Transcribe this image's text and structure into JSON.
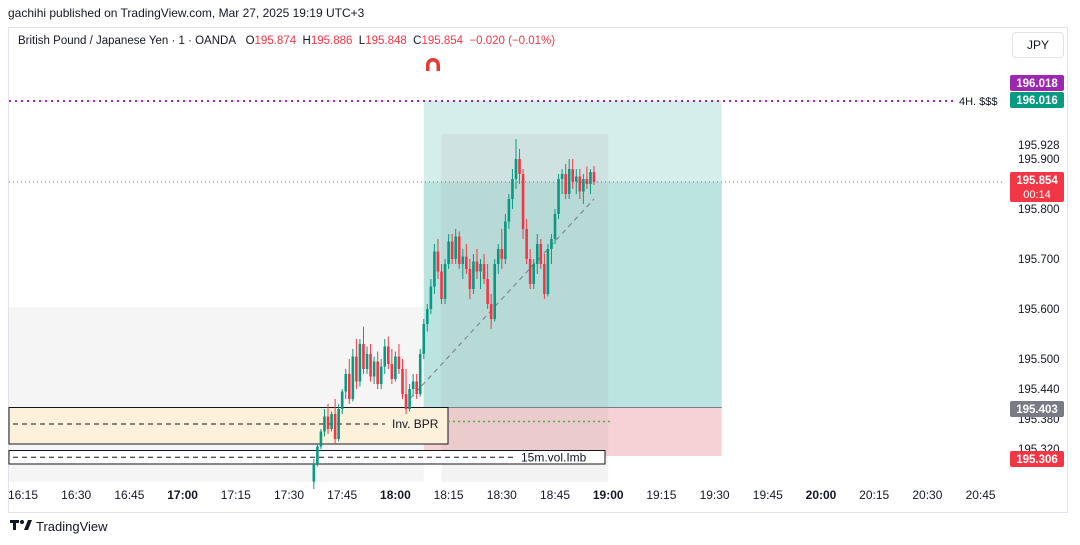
{
  "header": {
    "text": "gachihi published on TradingView.com, Mar 27, 2025 19:19 UTC+3"
  },
  "legend": {
    "symbol": "British Pound / Japanese Yen · 1 · OANDA",
    "o_label": "O",
    "o": "195.874",
    "h_label": "H",
    "h": "195.886",
    "l_label": "L",
    "l": "195.848",
    "c_label": "C",
    "c": "195.854",
    "change": "−0.020 (−0.01%)"
  },
  "currency": "JPY",
  "footer": {
    "brand": "TradingView"
  },
  "colors": {
    "up": "#089981",
    "down": "#f23645",
    "purple": "#9c27b0",
    "profit_zone": "#b2dfdb",
    "loss_zone": "#f7d2d4",
    "bpr": "#fdf1dc"
  },
  "chart_data": {
    "type": "candlestick",
    "x_tick_labels": [
      "16:15",
      "16:30",
      "16:45",
      "17:00",
      "17:15",
      "17:30",
      "17:45",
      "18:00",
      "18:15",
      "18:30",
      "18:45",
      "19:00",
      "19:15",
      "19:30",
      "19:45",
      "20:00",
      "20:15",
      "20:30",
      "20:45"
    ],
    "bold_x_ticks": [
      "17:00",
      "18:00",
      "19:00",
      "20:00"
    ],
    "y_tick_labels": [
      "195.928",
      "195.900",
      "195.800",
      "195.700",
      "195.600",
      "195.500",
      "195.440",
      "195.380",
      "195.320"
    ],
    "price_badges": [
      {
        "value": "196.018",
        "color": "#9c27b0"
      },
      {
        "value": "196.016",
        "color": "#089981"
      },
      {
        "value": "195.854",
        "sub": "00:14",
        "color": "#f23645"
      },
      {
        "value": "195.403",
        "color": "#787b86"
      },
      {
        "value": "195.306",
        "color": "#f23645"
      }
    ],
    "annotations": [
      {
        "text": "4H. $$$",
        "price": 196.016
      },
      {
        "text": "Inv. BPR",
        "price": 195.38
      },
      {
        "text": "15m.vol.Imb",
        "price": 195.305
      }
    ],
    "position": {
      "entry": 195.403,
      "target": 196.016,
      "stop": 195.306,
      "start": "18:08",
      "end": "19:32"
    },
    "candles": [
      {
        "t": "17:37",
        "o": 195.255,
        "h": 195.3,
        "l": 195.24,
        "c": 195.29
      },
      {
        "t": "17:38",
        "o": 195.29,
        "h": 195.33,
        "l": 195.285,
        "c": 195.325
      },
      {
        "t": "17:39",
        "o": 195.325,
        "h": 195.36,
        "l": 195.32,
        "c": 195.355
      },
      {
        "t": "17:40",
        "o": 195.355,
        "h": 195.4,
        "l": 195.345,
        "c": 195.385
      },
      {
        "t": "17:41",
        "o": 195.385,
        "h": 195.41,
        "l": 195.35,
        "c": 195.36
      },
      {
        "t": "17:42",
        "o": 195.36,
        "h": 195.395,
        "l": 195.355,
        "c": 195.39
      },
      {
        "t": "17:43",
        "o": 195.39,
        "h": 195.42,
        "l": 195.33,
        "c": 195.34
      },
      {
        "t": "17:44",
        "o": 195.34,
        "h": 195.41,
        "l": 195.335,
        "c": 195.4
      },
      {
        "t": "17:45",
        "o": 195.4,
        "h": 195.44,
        "l": 195.39,
        "c": 195.435
      },
      {
        "t": "17:46",
        "o": 195.435,
        "h": 195.48,
        "l": 195.42,
        "c": 195.47
      },
      {
        "t": "17:47",
        "o": 195.47,
        "h": 195.5,
        "l": 195.41,
        "c": 195.42
      },
      {
        "t": "17:48",
        "o": 195.42,
        "h": 195.52,
        "l": 195.415,
        "c": 195.505
      },
      {
        "t": "17:49",
        "o": 195.505,
        "h": 195.54,
        "l": 195.44,
        "c": 195.455
      },
      {
        "t": "17:50",
        "o": 195.455,
        "h": 195.54,
        "l": 195.445,
        "c": 195.53
      },
      {
        "t": "17:51",
        "o": 195.53,
        "h": 195.565,
        "l": 195.47,
        "c": 195.48
      },
      {
        "t": "17:52",
        "o": 195.48,
        "h": 195.525,
        "l": 195.47,
        "c": 195.51
      },
      {
        "t": "17:53",
        "o": 195.51,
        "h": 195.53,
        "l": 195.455,
        "c": 195.465
      },
      {
        "t": "17:54",
        "o": 195.465,
        "h": 195.505,
        "l": 195.45,
        "c": 195.495
      },
      {
        "t": "17:55",
        "o": 195.495,
        "h": 195.515,
        "l": 195.44,
        "c": 195.45
      },
      {
        "t": "17:56",
        "o": 195.45,
        "h": 195.5,
        "l": 195.44,
        "c": 195.485
      },
      {
        "t": "17:57",
        "o": 195.485,
        "h": 195.54,
        "l": 195.47,
        "c": 195.525
      },
      {
        "t": "17:58",
        "o": 195.525,
        "h": 195.545,
        "l": 195.48,
        "c": 195.49
      },
      {
        "t": "17:59",
        "o": 195.49,
        "h": 195.52,
        "l": 195.45,
        "c": 195.46
      },
      {
        "t": "18:00",
        "o": 195.46,
        "h": 195.515,
        "l": 195.455,
        "c": 195.505
      },
      {
        "t": "18:01",
        "o": 195.505,
        "h": 195.53,
        "l": 195.47,
        "c": 195.48
      },
      {
        "t": "18:02",
        "o": 195.48,
        "h": 195.5,
        "l": 195.42,
        "c": 195.43
      },
      {
        "t": "18:03",
        "o": 195.43,
        "h": 195.48,
        "l": 195.39,
        "c": 195.4
      },
      {
        "t": "18:04",
        "o": 195.4,
        "h": 195.45,
        "l": 195.395,
        "c": 195.44
      },
      {
        "t": "18:05",
        "o": 195.44,
        "h": 195.47,
        "l": 195.425,
        "c": 195.455
      },
      {
        "t": "18:06",
        "o": 195.455,
        "h": 195.47,
        "l": 195.42,
        "c": 195.43
      },
      {
        "t": "18:07",
        "o": 195.43,
        "h": 195.52,
        "l": 195.425,
        "c": 195.51
      },
      {
        "t": "18:08",
        "o": 195.51,
        "h": 195.58,
        "l": 195.5,
        "c": 195.57
      },
      {
        "t": "18:09",
        "o": 195.57,
        "h": 195.61,
        "l": 195.555,
        "c": 195.6
      },
      {
        "t": "18:10",
        "o": 195.6,
        "h": 195.66,
        "l": 195.59,
        "c": 195.645
      },
      {
        "t": "18:11",
        "o": 195.645,
        "h": 195.73,
        "l": 195.63,
        "c": 195.715
      },
      {
        "t": "18:12",
        "o": 195.715,
        "h": 195.74,
        "l": 195.66,
        "c": 195.675
      },
      {
        "t": "18:13",
        "o": 195.675,
        "h": 195.69,
        "l": 195.61,
        "c": 195.62
      },
      {
        "t": "18:14",
        "o": 195.62,
        "h": 195.7,
        "l": 195.61,
        "c": 195.69
      },
      {
        "t": "18:15",
        "o": 195.69,
        "h": 195.75,
        "l": 195.68,
        "c": 195.735
      },
      {
        "t": "18:16",
        "o": 195.735,
        "h": 195.75,
        "l": 195.69,
        "c": 195.7
      },
      {
        "t": "18:17",
        "o": 195.7,
        "h": 195.76,
        "l": 195.69,
        "c": 195.745
      },
      {
        "t": "18:18",
        "o": 195.745,
        "h": 195.755,
        "l": 195.68,
        "c": 195.69
      },
      {
        "t": "18:19",
        "o": 195.69,
        "h": 195.72,
        "l": 195.66,
        "c": 195.705
      },
      {
        "t": "18:20",
        "o": 195.705,
        "h": 195.73,
        "l": 195.67,
        "c": 195.68
      },
      {
        "t": "18:21",
        "o": 195.68,
        "h": 195.7,
        "l": 195.62,
        "c": 195.64
      },
      {
        "t": "18:22",
        "o": 195.64,
        "h": 195.71,
        "l": 195.63,
        "c": 195.695
      },
      {
        "t": "18:23",
        "o": 195.695,
        "h": 195.72,
        "l": 195.66,
        "c": 195.675
      },
      {
        "t": "18:24",
        "o": 195.675,
        "h": 195.7,
        "l": 195.64,
        "c": 195.69
      },
      {
        "t": "18:25",
        "o": 195.69,
        "h": 195.71,
        "l": 195.65,
        "c": 195.66
      },
      {
        "t": "18:26",
        "o": 195.66,
        "h": 195.69,
        "l": 195.6,
        "c": 195.61
      },
      {
        "t": "18:27",
        "o": 195.61,
        "h": 195.63,
        "l": 195.56,
        "c": 195.58
      },
      {
        "t": "18:28",
        "o": 195.58,
        "h": 195.7,
        "l": 195.575,
        "c": 195.69
      },
      {
        "t": "18:29",
        "o": 195.69,
        "h": 195.73,
        "l": 195.67,
        "c": 195.72
      },
      {
        "t": "18:30",
        "o": 195.72,
        "h": 195.76,
        "l": 195.68,
        "c": 195.7
      },
      {
        "t": "18:31",
        "o": 195.7,
        "h": 195.79,
        "l": 195.69,
        "c": 195.775
      },
      {
        "t": "18:32",
        "o": 195.775,
        "h": 195.83,
        "l": 195.76,
        "c": 195.82
      },
      {
        "t": "18:33",
        "o": 195.82,
        "h": 195.88,
        "l": 195.8,
        "c": 195.86
      },
      {
        "t": "18:34",
        "o": 195.86,
        "h": 195.94,
        "l": 195.84,
        "c": 195.9
      },
      {
        "t": "18:35",
        "o": 195.9,
        "h": 195.92,
        "l": 195.85,
        "c": 195.87
      },
      {
        "t": "18:36",
        "o": 195.87,
        "h": 195.88,
        "l": 195.74,
        "c": 195.76
      },
      {
        "t": "18:37",
        "o": 195.76,
        "h": 195.78,
        "l": 195.69,
        "c": 195.7
      },
      {
        "t": "18:38",
        "o": 195.7,
        "h": 195.72,
        "l": 195.64,
        "c": 195.65
      },
      {
        "t": "18:39",
        "o": 195.65,
        "h": 195.7,
        "l": 195.64,
        "c": 195.69
      },
      {
        "t": "18:40",
        "o": 195.69,
        "h": 195.75,
        "l": 195.67,
        "c": 195.73
      },
      {
        "t": "18:41",
        "o": 195.73,
        "h": 195.74,
        "l": 195.68,
        "c": 195.69
      },
      {
        "t": "18:42",
        "o": 195.69,
        "h": 195.71,
        "l": 195.62,
        "c": 195.63
      },
      {
        "t": "18:43",
        "o": 195.63,
        "h": 195.73,
        "l": 195.625,
        "c": 195.72
      },
      {
        "t": "18:44",
        "o": 195.72,
        "h": 195.75,
        "l": 195.69,
        "c": 195.74
      },
      {
        "t": "18:45",
        "o": 195.74,
        "h": 195.8,
        "l": 195.73,
        "c": 195.79
      },
      {
        "t": "18:46",
        "o": 195.79,
        "h": 195.87,
        "l": 195.78,
        "c": 195.86
      },
      {
        "t": "18:47",
        "o": 195.86,
        "h": 195.88,
        "l": 195.83,
        "c": 195.87
      },
      {
        "t": "18:48",
        "o": 195.87,
        "h": 195.89,
        "l": 195.82,
        "c": 195.83
      },
      {
        "t": "18:49",
        "o": 195.83,
        "h": 195.9,
        "l": 195.82,
        "c": 195.88
      },
      {
        "t": "18:50",
        "o": 195.88,
        "h": 195.9,
        "l": 195.84,
        "c": 195.855
      },
      {
        "t": "18:51",
        "o": 195.855,
        "h": 195.88,
        "l": 195.83,
        "c": 195.865
      },
      {
        "t": "18:52",
        "o": 195.865,
        "h": 195.88,
        "l": 195.82,
        "c": 195.835
      },
      {
        "t": "18:53",
        "o": 195.835,
        "h": 195.87,
        "l": 195.81,
        "c": 195.86
      },
      {
        "t": "18:54",
        "o": 195.86,
        "h": 195.885,
        "l": 195.84,
        "c": 195.85
      },
      {
        "t": "18:55",
        "o": 195.85,
        "h": 195.88,
        "l": 195.83,
        "c": 195.874
      },
      {
        "t": "18:56",
        "o": 195.874,
        "h": 195.886,
        "l": 195.848,
        "c": 195.854
      }
    ]
  }
}
